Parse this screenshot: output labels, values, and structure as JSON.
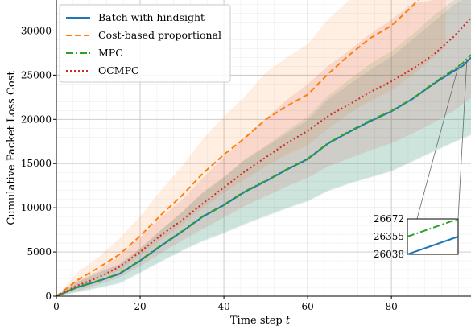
{
  "chart_data": {
    "type": "line",
    "xlabel": "Time step",
    "xlabel_var": "t",
    "ylabel": "Cumulative Packet Loss Cost",
    "xlim": [
      0,
      99
    ],
    "ylim": [
      0,
      33500
    ],
    "xticks": [
      0,
      20,
      40,
      60,
      80
    ],
    "yticks": [
      0,
      5000,
      10000,
      15000,
      20000,
      25000,
      30000
    ],
    "grid": true,
    "minor_grid": true,
    "legend_position": "top-left",
    "series": [
      {
        "name": "Batch with hindsight",
        "color": "#1f77b4",
        "dash": "solid",
        "x": [
          0,
          5,
          10,
          15,
          20,
          25,
          30,
          35,
          40,
          45,
          50,
          55,
          60,
          65,
          70,
          75,
          80,
          85,
          90,
          95,
          97,
          99
        ],
        "y": [
          0,
          1000,
          1700,
          2500,
          4000,
          5700,
          7300,
          9000,
          10300,
          11800,
          13000,
          14300,
          15500,
          17300,
          18600,
          19800,
          20900,
          22300,
          24000,
          25500,
          26038,
          27000
        ],
        "band_lo": [
          0,
          400,
          900,
          1400,
          2600,
          3900,
          5100,
          6200,
          7100,
          8100,
          9000,
          9900,
          10700,
          11900,
          12700,
          13400,
          14100,
          15200,
          16300,
          17400,
          17800,
          18200
        ],
        "band_hi": [
          0,
          1600,
          2700,
          3600,
          5400,
          7500,
          9500,
          11700,
          13400,
          15400,
          16900,
          18400,
          19900,
          22300,
          24000,
          25600,
          27100,
          29000,
          31000,
          33000,
          33500,
          33500
        ]
      },
      {
        "name": "Cost-based proportional",
        "color": "#ff7f0e",
        "dash": "dashed",
        "x": [
          0,
          5,
          10,
          15,
          20,
          25,
          30,
          35,
          40,
          45,
          50,
          55,
          60,
          65,
          70,
          75,
          80,
          85,
          90,
          93
        ],
        "y": [
          0,
          1800,
          3200,
          4700,
          6800,
          9200,
          11400,
          13900,
          16000,
          17900,
          20000,
          21500,
          22800,
          25200,
          27300,
          29200,
          30600,
          32800,
          35500,
          37000
        ],
        "band_lo": [
          0,
          900,
          2000,
          2900,
          4600,
          6400,
          8100,
          10000,
          11700,
          13200,
          14700,
          16000,
          17100,
          19000,
          20700,
          22100,
          23300,
          25000,
          27000,
          28200
        ],
        "band_hi": [
          0,
          2700,
          4400,
          6500,
          9000,
          12000,
          14700,
          17800,
          20300,
          22600,
          25300,
          27000,
          28500,
          31400,
          33500,
          33500,
          33500,
          33500,
          33500,
          33500
        ]
      },
      {
        "name": "MPC",
        "color": "#2ca02c",
        "dash": "dashdot",
        "x": [
          0,
          5,
          10,
          15,
          20,
          25,
          30,
          35,
          40,
          45,
          50,
          55,
          60,
          65,
          70,
          75,
          80,
          85,
          90,
          95,
          97,
          99
        ],
        "y": [
          0,
          1050,
          1750,
          2550,
          4050,
          5750,
          7350,
          9050,
          10350,
          11850,
          13050,
          14350,
          15550,
          17350,
          18650,
          19900,
          20950,
          22350,
          24050,
          25700,
          26355,
          27300
        ],
        "band_lo": [
          0,
          500,
          1000,
          1500,
          2700,
          4000,
          5200,
          6300,
          7200,
          8200,
          9100,
          10000,
          10800,
          12000,
          12800,
          13500,
          14200,
          15300,
          16400,
          17500,
          17900,
          18300
        ],
        "band_hi": [
          0,
          1600,
          2600,
          3600,
          5400,
          7500,
          9500,
          11800,
          13500,
          15500,
          17000,
          18700,
          20300,
          22700,
          24500,
          26300,
          27700,
          29600,
          31700,
          33500,
          33500,
          33500
        ]
      },
      {
        "name": "OCMPC",
        "color": "#d62728",
        "dash": "dotted",
        "x": [
          0,
          5,
          10,
          15,
          20,
          25,
          30,
          35,
          40,
          45,
          50,
          55,
          60,
          65,
          70,
          75,
          80,
          85,
          90,
          95,
          99
        ],
        "y": [
          0,
          1200,
          2100,
          3300,
          5000,
          6900,
          8600,
          10500,
          12300,
          14100,
          15700,
          17300,
          18700,
          20400,
          21700,
          23100,
          24300,
          25700,
          27300,
          29400,
          31500
        ],
        "band_lo": [
          0,
          600,
          1300,
          2100,
          3400,
          4900,
          6300,
          7600,
          8900,
          10200,
          11300,
          12400,
          13400,
          14700,
          15600,
          16500,
          17300,
          18400,
          19600,
          21000,
          22400
        ],
        "band_hi": [
          0,
          1800,
          2900,
          4500,
          6600,
          8900,
          10900,
          13400,
          15700,
          18000,
          20100,
          22200,
          24000,
          26100,
          27800,
          29700,
          31300,
          33100,
          33500,
          33500,
          33500
        ]
      }
    ],
    "inset": {
      "xlim": [
        96,
        98
      ],
      "ylim": [
        26038,
        26672
      ],
      "yticks": [
        26038,
        26355,
        26672
      ],
      "series": [
        {
          "name": "Batch with hindsight",
          "y_start": 26038,
          "y_end": 26355
        },
        {
          "name": "MPC",
          "y_start": 26355,
          "y_end": 26672
        }
      ]
    }
  }
}
